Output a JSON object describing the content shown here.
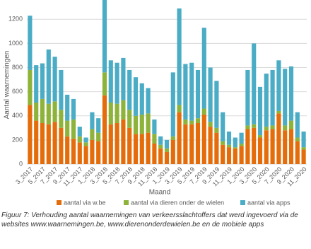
{
  "chart_data": {
    "type": "stacked-bar",
    "y_label": "Aantal waarnemingen",
    "x_label": "Maand",
    "categories": [
      "3_2017",
      null,
      "5_2017",
      null,
      "7_2017",
      null,
      "9_2017",
      null,
      "11_2017",
      null,
      "1_2018",
      null,
      "3_2018",
      null,
      "5_2018",
      null,
      "7_2018",
      null,
      "9_2018",
      null,
      "11_2018",
      null,
      "1_2019",
      null,
      "3_2019",
      null,
      "5_2019",
      null,
      "7_2019",
      null,
      "9_2019",
      null,
      "11_2019",
      null,
      "1_2020",
      null,
      "3_2020",
      null,
      "5_2020",
      null,
      "7_2020",
      null,
      "9_2020",
      null,
      "11_2020"
    ],
    "series": [
      {
        "name": "aantal via w.be",
        "color": "#e46c0a",
        "values": [
          490,
          360,
          340,
          330,
          350,
          300,
          230,
          210,
          180,
          150,
          200,
          190,
          570,
          330,
          340,
          370,
          300,
          250,
          250,
          260,
          170,
          130,
          100,
          200,
          430,
          330,
          330,
          340,
          410,
          310,
          260,
          160,
          140,
          130,
          150,
          290,
          300,
          220,
          280,
          290,
          420,
          280,
          290,
          190,
          120
        ]
      },
      {
        "name": "aantal via dieren onder de wielen",
        "color": "#8db33a",
        "values": [
          290,
          150,
          200,
          170,
          170,
          150,
          130,
          160,
          50,
          30,
          90,
          70,
          190,
          180,
          160,
          160,
          150,
          150,
          160,
          160,
          80,
          30,
          30,
          30,
          60,
          40,
          30,
          40,
          50,
          40,
          40,
          30,
          20,
          10,
          20,
          30,
          30,
          20,
          30,
          30,
          20,
          40,
          70,
          30,
          20
        ]
      },
      {
        "name": "aantal via apps",
        "color": "#4bacc6",
        "values": [
          450,
          310,
          295,
          450,
          370,
          330,
          215,
          170,
          80,
          40,
          140,
          120,
          620,
          350,
          340,
          350,
          330,
          320,
          260,
          210,
          120,
          70,
          70,
          530,
          800,
          460,
          480,
          400,
          670,
          450,
          390,
          240,
          110,
          80,
          90,
          460,
          670,
          400,
          440,
          460,
          420,
          470,
          450,
          210,
          130
        ]
      }
    ],
    "ylim": [
      0,
      1360
    ],
    "yticks": [
      0,
      200,
      400,
      600,
      800,
      1000,
      1200
    ],
    "grid": true
  },
  "caption": "Figuur 7: Verhouding aantal waarnemingen van verkeersslachtoffers dat werd ingevoerd via de websites www.waarnemingen.be, www.dierenonderdewielen.be en de mobiele apps"
}
